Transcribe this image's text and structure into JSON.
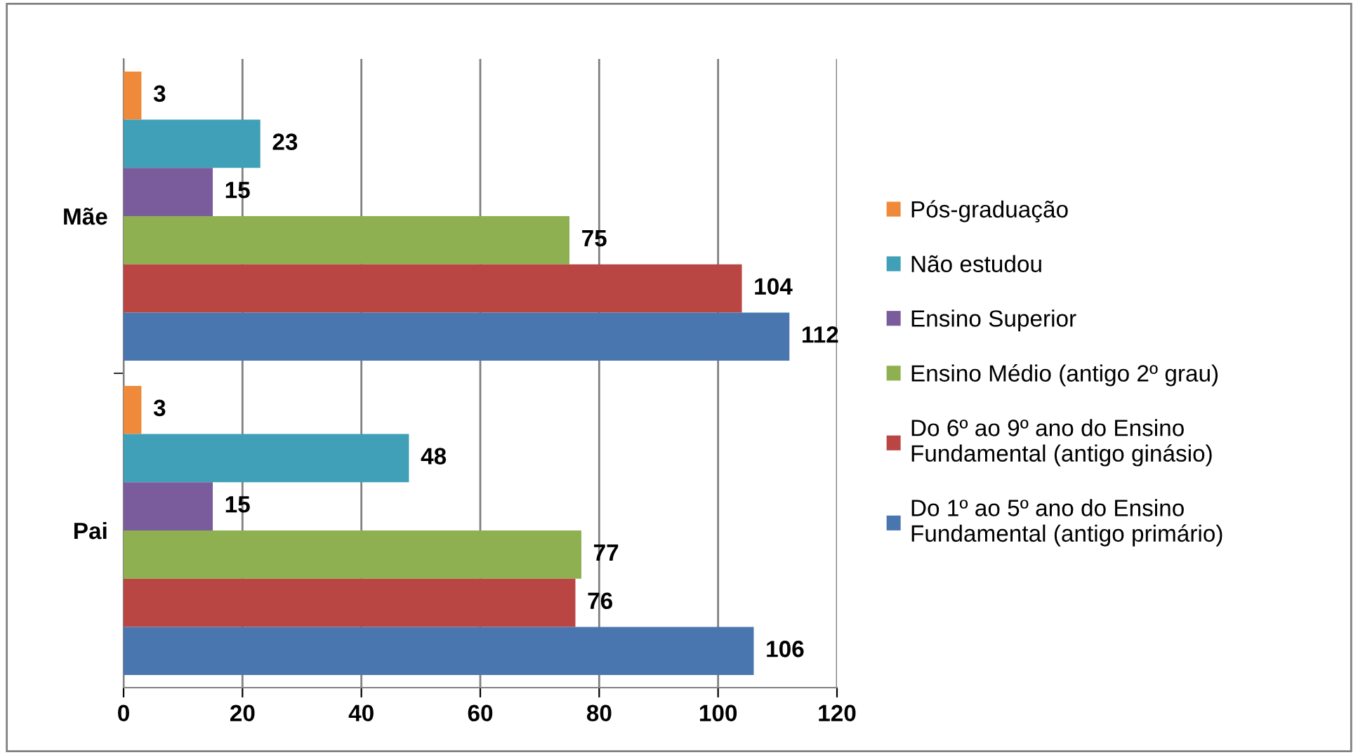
{
  "chart_data": {
    "type": "bar",
    "orientation": "horizontal",
    "categories": [
      "Mãe",
      "Pai"
    ],
    "series": [
      {
        "name": "Pós-graduação",
        "color": "#ee8a3a",
        "values": [
          3,
          3
        ]
      },
      {
        "name": "Não estudou",
        "color": "#3fa0b8",
        "values": [
          23,
          48
        ]
      },
      {
        "name": "Ensino Superior",
        "color": "#7a5c9c",
        "values": [
          15,
          15
        ]
      },
      {
        "name": "Ensino Médio (antigo 2º grau)",
        "color": "#8eb050",
        "values": [
          75,
          77
        ]
      },
      {
        "name": "Do 6º ao 9º ano do Ensino\nFundamental (antigo ginásio)",
        "color": "#b94643",
        "values": [
          104,
          76
        ]
      },
      {
        "name": "Do 1º ao 5º ano do Ensino\nFundamental (antigo primário)",
        "color": "#4a76b0",
        "values": [
          112,
          106
        ]
      }
    ],
    "xlim": [
      0,
      120
    ],
    "xticks": [
      0,
      20,
      40,
      60,
      80,
      100,
      120
    ],
    "grid": "x",
    "legend": "right",
    "data_labels": true
  }
}
